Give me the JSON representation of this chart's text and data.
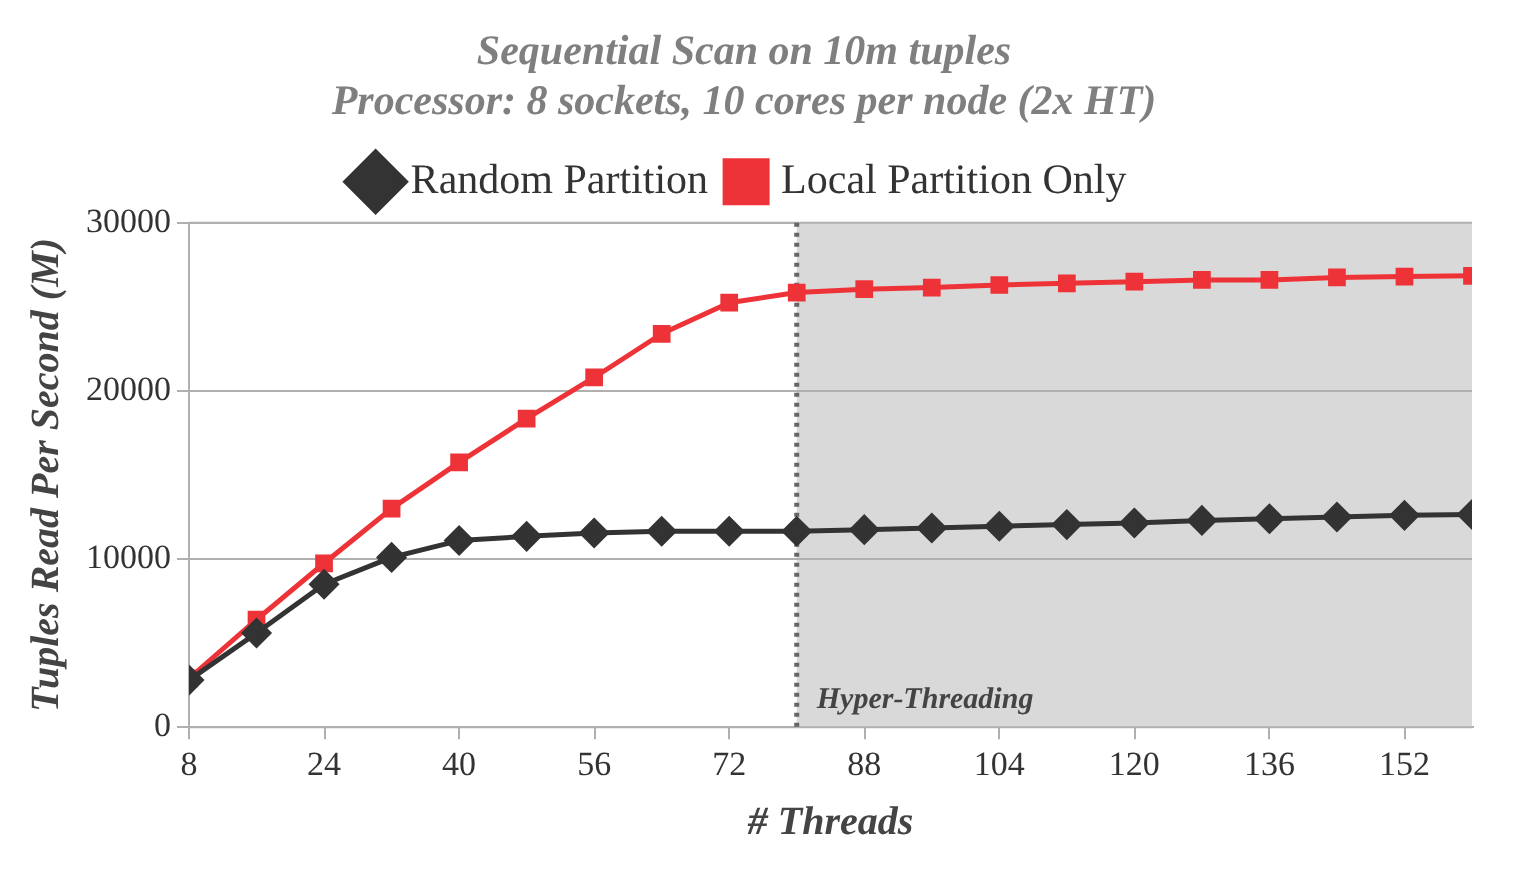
{
  "chart_data": {
    "type": "line",
    "title": "Sequential Scan on 10m tuples",
    "subtitle": "Processor: 8 sockets, 10 cores per node (2x HT)",
    "xlabel": "# Threads",
    "ylabel": "Tuples Read Per Second (M)",
    "x": [
      8,
      16,
      24,
      32,
      40,
      48,
      56,
      64,
      72,
      80,
      88,
      96,
      104,
      112,
      120,
      128,
      136,
      144,
      152,
      160
    ],
    "series": [
      {
        "name": "Random Partition",
        "color": "#333333",
        "marker": "diamond",
        "values": [
          2800,
          5600,
          8500,
          10100,
          11100,
          11350,
          11550,
          11650,
          11650,
          11650,
          11750,
          11850,
          11950,
          12050,
          12150,
          12300,
          12400,
          12500,
          12600,
          12650
        ]
      },
      {
        "name": "Local Partition Only",
        "color": "#ee3338",
        "marker": "square",
        "values": [
          2900,
          6400,
          9750,
          13000,
          15750,
          18350,
          20800,
          23400,
          25250,
          25850,
          26050,
          26150,
          26300,
          26400,
          26500,
          26600,
          26600,
          26750,
          26800,
          26850
        ]
      }
    ],
    "xlim": [
      8,
      160
    ],
    "xticks": [
      8,
      24,
      40,
      56,
      72,
      88,
      104,
      120,
      136,
      152
    ],
    "ylim": [
      0,
      30000
    ],
    "yticks": [
      0,
      10000,
      20000,
      30000
    ],
    "grid": "y",
    "legend": "top",
    "bands": [
      {
        "axis": "x",
        "from": 80,
        "to": 160,
        "label": "Hyper-Threading",
        "color": "#d9d9d9"
      }
    ],
    "ref_lines": [
      {
        "axis": "x",
        "value": 80,
        "color": "#666666",
        "line_style": "dotted"
      }
    ]
  }
}
